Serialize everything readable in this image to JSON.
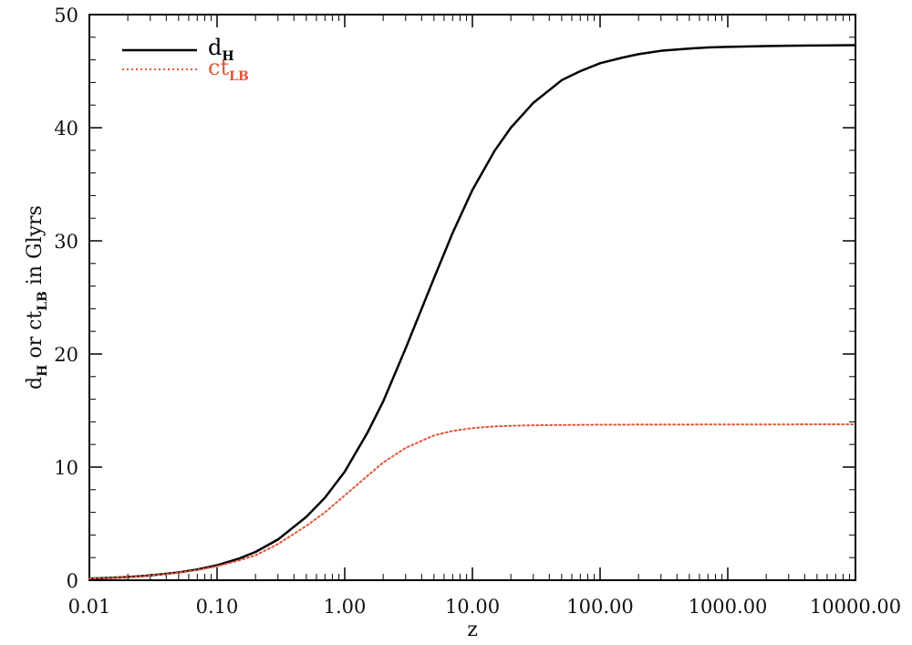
{
  "chart_data": {
    "type": "line",
    "xlabel": "z",
    "x_scale": "log",
    "xlim": [
      0.01,
      10000
    ],
    "ylim": [
      0,
      50
    ],
    "x_ticks": [
      0.01,
      0.1,
      1,
      10,
      100,
      1000,
      10000
    ],
    "x_tick_labels": [
      "0.01",
      "0.10",
      "1.00",
      "10.00",
      "100.00",
      "1000.00",
      "10000.00"
    ],
    "y_ticks": [
      0,
      10,
      20,
      30,
      40,
      50
    ],
    "y_tick_labels": [
      "0",
      "10",
      "20",
      "30",
      "40",
      "50"
    ],
    "ylabel": {
      "d": "d",
      "d_sub": "H",
      "middle": " or ct",
      "ct_sub": "LB",
      "tail": " in Glyrs"
    },
    "legend_position": "top-left",
    "grid": false,
    "series": [
      {
        "name": "d",
        "name_sub": "H",
        "color": "#000000",
        "line_style": "solid",
        "x": [
          0.01,
          0.02,
          0.03,
          0.05,
          0.07,
          0.1,
          0.15,
          0.2,
          0.3,
          0.5,
          0.7,
          1,
          1.5,
          2,
          3,
          5,
          7,
          10,
          15,
          20,
          30,
          50,
          70,
          100,
          150,
          200,
          300,
          500,
          700,
          1000,
          2000,
          3000,
          5000,
          10000
        ],
        "y": [
          0.14,
          0.28,
          0.42,
          0.69,
          0.95,
          1.32,
          1.93,
          2.5,
          3.6,
          5.6,
          7.3,
          9.6,
          13.0,
          15.8,
          20.5,
          26.7,
          30.7,
          34.5,
          38.0,
          40.0,
          42.2,
          44.2,
          45.0,
          45.7,
          46.2,
          46.5,
          46.8,
          47.0,
          47.1,
          47.15,
          47.22,
          47.25,
          47.27,
          47.3
        ]
      },
      {
        "name": "ct",
        "name_sub": "LB",
        "color": "#e0563a",
        "line_style": "dotted",
        "x": [
          0.01,
          0.02,
          0.03,
          0.05,
          0.07,
          0.1,
          0.15,
          0.2,
          0.3,
          0.5,
          0.7,
          1,
          1.5,
          2,
          3,
          5,
          7,
          10,
          15,
          20,
          30,
          50,
          100,
          1000,
          10000
        ],
        "y": [
          0.14,
          0.27,
          0.41,
          0.66,
          0.9,
          1.23,
          1.76,
          2.2,
          3.2,
          4.8,
          6.0,
          7.5,
          9.2,
          10.4,
          11.7,
          12.8,
          13.2,
          13.45,
          13.6,
          13.65,
          13.7,
          13.72,
          13.75,
          13.77,
          13.78
        ]
      }
    ]
  }
}
